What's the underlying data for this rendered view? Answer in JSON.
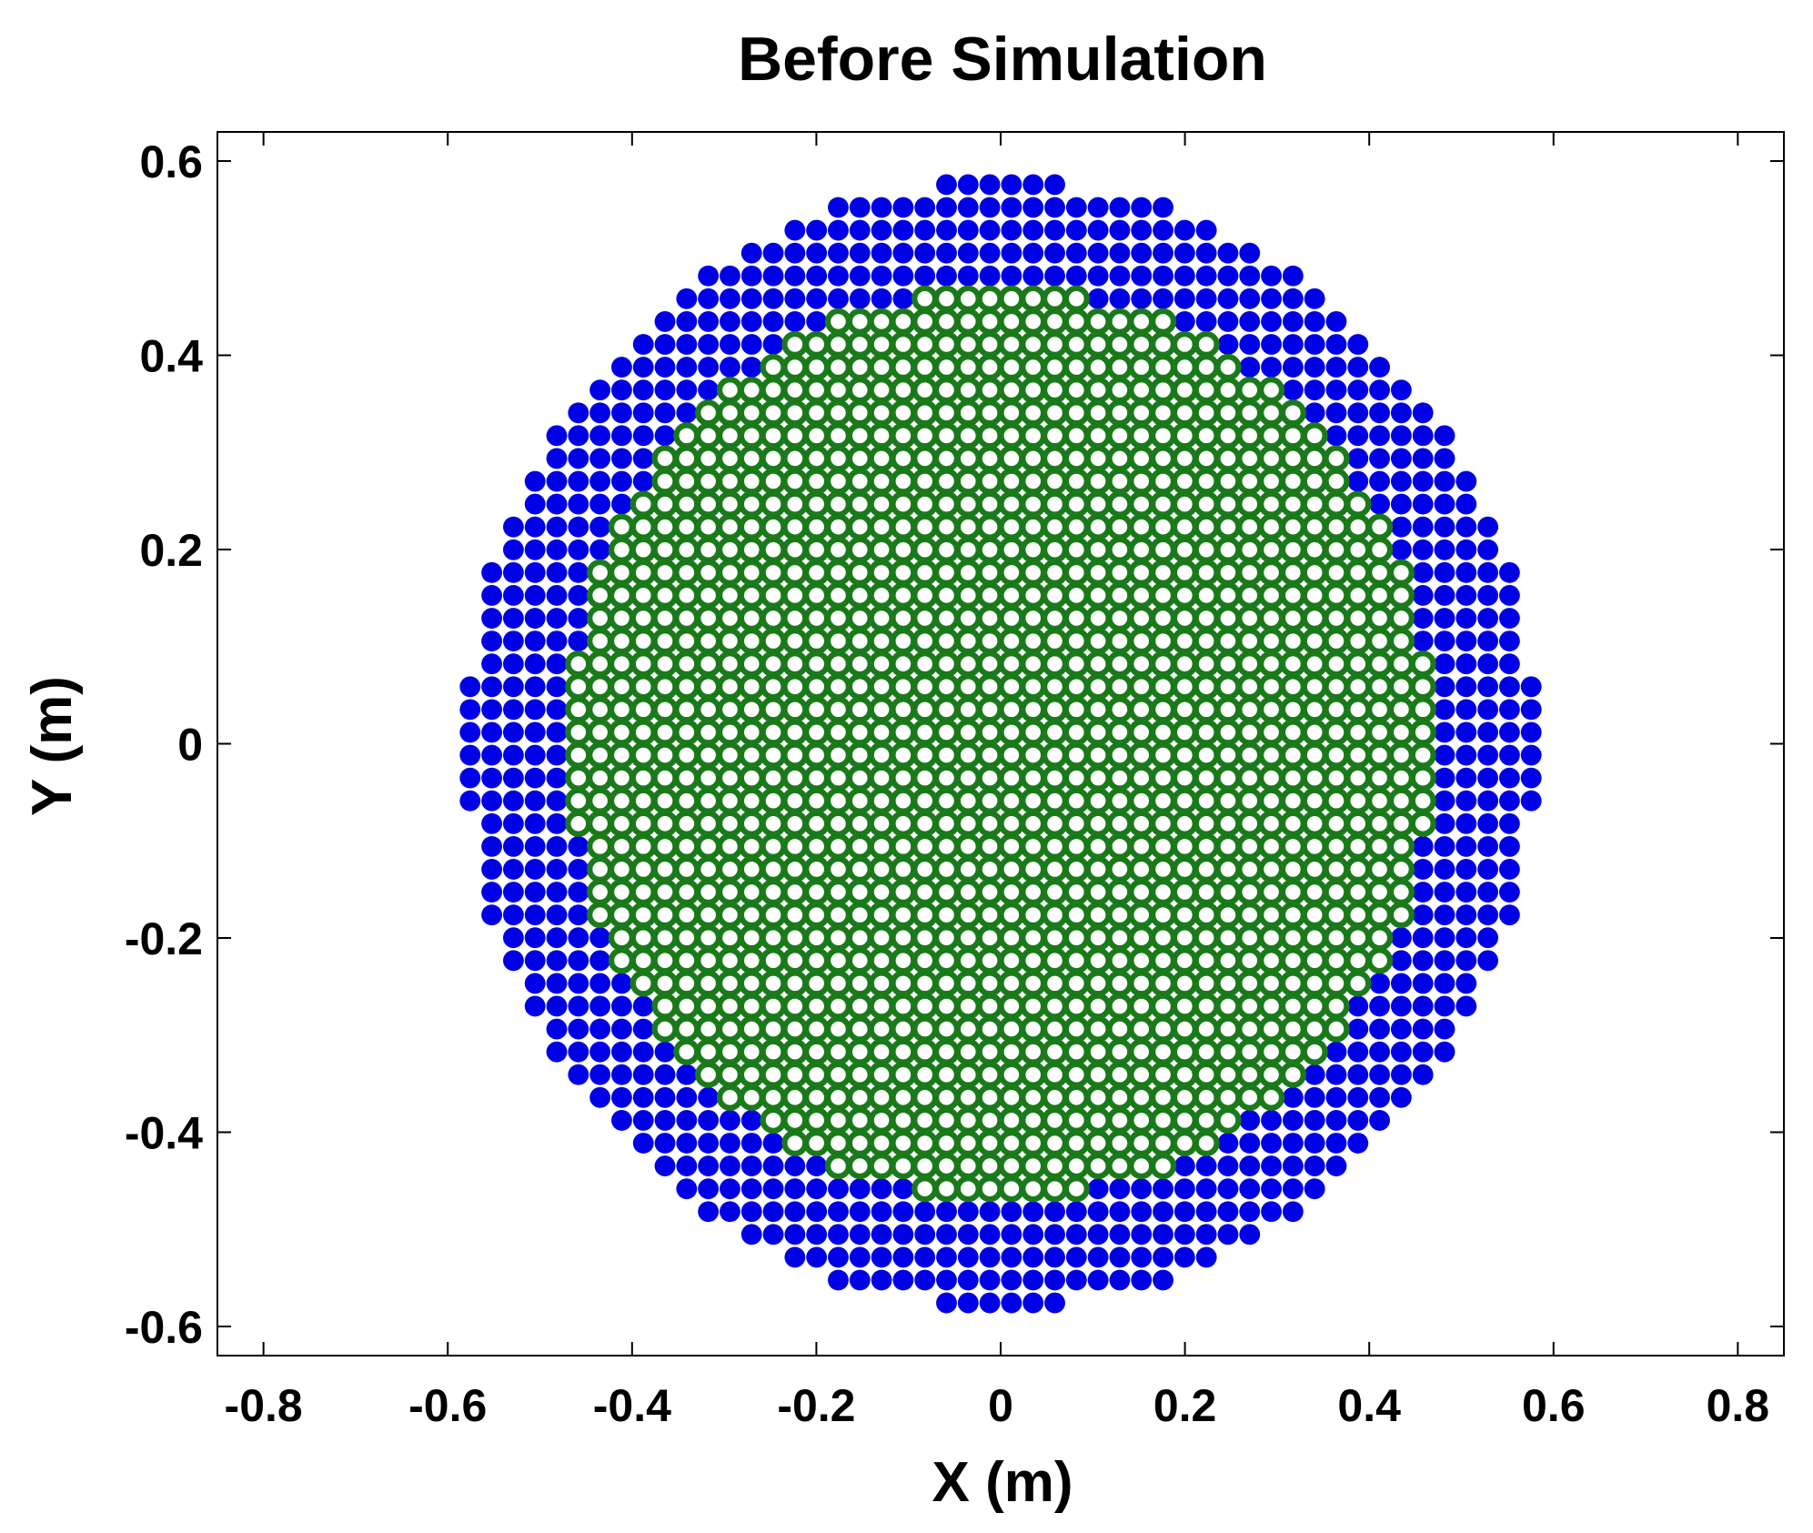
{
  "chart_data": {
    "type": "scatter",
    "title": "Before Simulation",
    "xlabel": "X (m)",
    "ylabel": "Y (m)",
    "xlim": [
      -0.85,
      0.85
    ],
    "ylim": [
      -0.63,
      0.63
    ],
    "xticks": [
      -0.8,
      -0.6,
      -0.4,
      -0.2,
      0,
      0.2,
      0.4,
      0.6,
      0.8
    ],
    "yticks": [
      -0.6,
      -0.4,
      -0.2,
      0,
      0.2,
      0.4,
      0.6
    ],
    "xtick_labels": [
      "-0.8",
      "-0.6",
      "-0.4",
      "-0.2",
      "0",
      "0.2",
      "0.4",
      "0.6",
      "0.8"
    ],
    "ytick_labels": [
      "-0.6",
      "-0.4",
      "-0.2",
      "0",
      "0.2",
      "0.4",
      "0.6"
    ],
    "grid": false,
    "legend": "none",
    "series": [
      {
        "description": "outer ring particles",
        "color": "#0000e6",
        "marker": "filled-circle",
        "layout": "square-lattice",
        "spacing": 0.0235,
        "region": {
          "shape": "annulus",
          "center": [
            0,
            0
          ],
          "r_min": 0.47,
          "r_max": 0.58
        }
      },
      {
        "description": "inner core particles",
        "color": "#1a7a1a",
        "marker": "ring-circle",
        "layout": "square-lattice",
        "spacing": 0.0235,
        "region": {
          "shape": "disk",
          "center": [
            0,
            0
          ],
          "r_max": 0.47
        }
      }
    ]
  }
}
